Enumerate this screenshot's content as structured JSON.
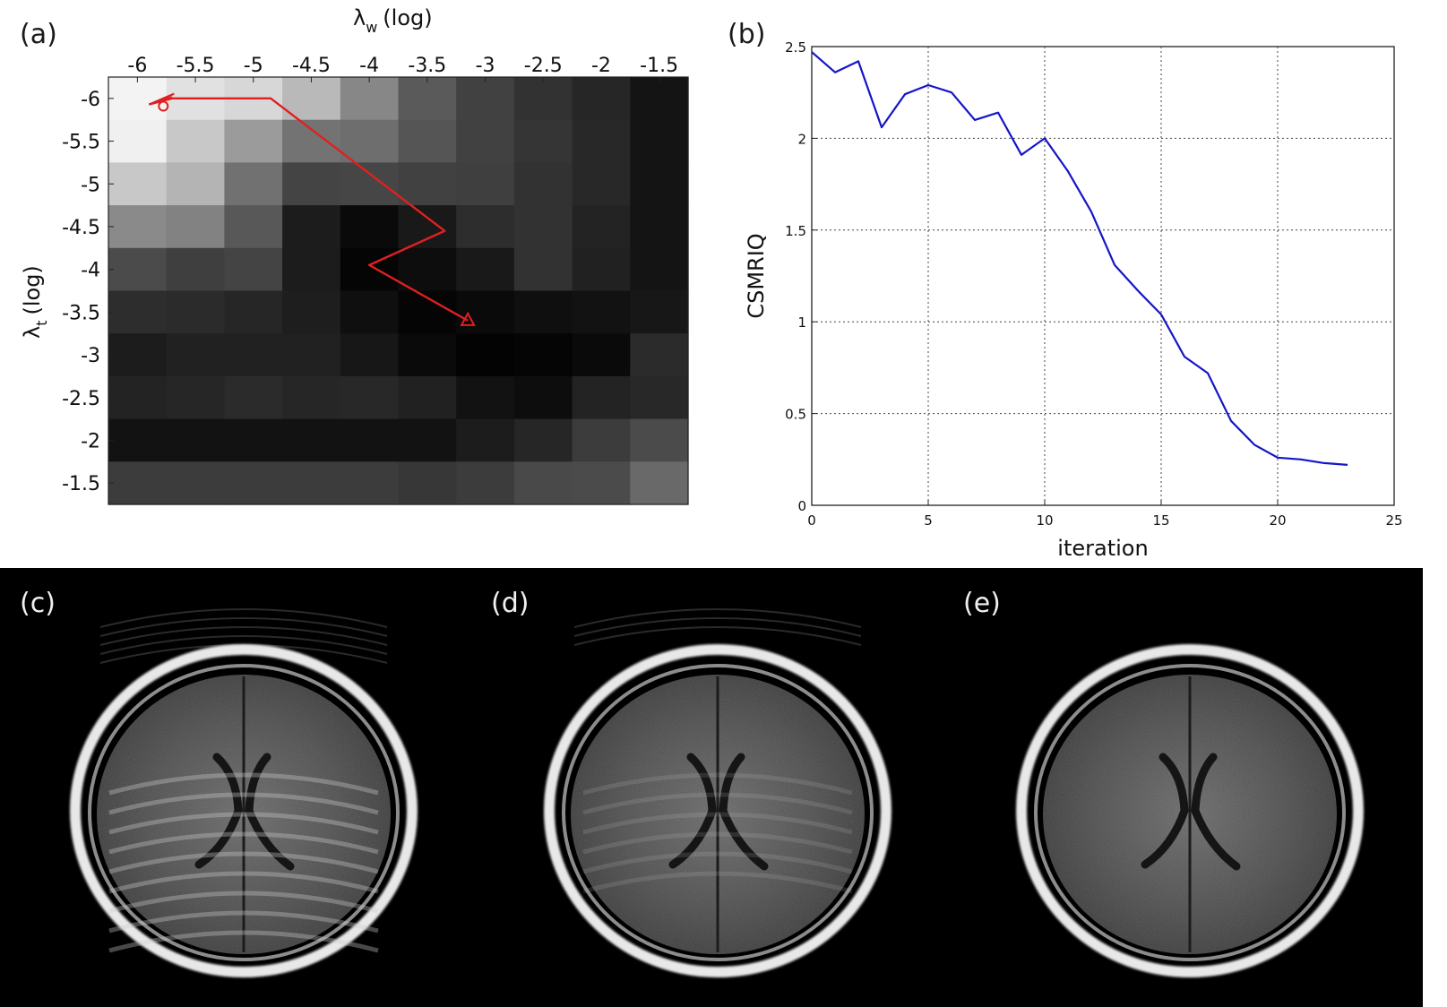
{
  "chart_data": [
    {
      "id": "a",
      "type": "heatmap",
      "panel_label": "(a)",
      "xlabel": {
        "symbol": "λ",
        "subscript": "w",
        "suffix": "(log)"
      },
      "ylabel": {
        "symbol": "λ",
        "subscript": "t",
        "suffix": "(log)"
      },
      "x_ticks": [
        "-6",
        "-5.5",
        "-5",
        "-4.5",
        "-4",
        "-3.5",
        "-3",
        "-2.5",
        "-2",
        "-1.5"
      ],
      "y_ticks": [
        "-6",
        "-5.5",
        "-5",
        "-4.5",
        "-4",
        "-3.5",
        "-3",
        "-2.5",
        "-2",
        "-1.5"
      ],
      "x_range": [
        -6.25,
        -1.25
      ],
      "y_range": [
        -6.25,
        -1.25
      ],
      "x_axis_position": "top",
      "y_direction": "down",
      "colormap": "gray",
      "z_relative": [
        [
          0.97,
          0.9,
          0.86,
          0.74,
          0.54,
          0.36,
          0.26,
          0.2,
          0.15,
          0.08
        ],
        [
          0.96,
          0.8,
          0.62,
          0.46,
          0.44,
          0.34,
          0.26,
          0.21,
          0.16,
          0.08
        ],
        [
          0.8,
          0.72,
          0.45,
          0.27,
          0.28,
          0.26,
          0.25,
          0.2,
          0.16,
          0.08
        ],
        [
          0.55,
          0.52,
          0.35,
          0.11,
          0.04,
          0.1,
          0.18,
          0.2,
          0.14,
          0.08
        ],
        [
          0.3,
          0.25,
          0.27,
          0.11,
          0.02,
          0.05,
          0.1,
          0.2,
          0.13,
          0.08
        ],
        [
          0.18,
          0.17,
          0.15,
          0.12,
          0.06,
          0.02,
          0.04,
          0.06,
          0.07,
          0.09
        ],
        [
          0.11,
          0.13,
          0.13,
          0.13,
          0.09,
          0.04,
          0.01,
          0.02,
          0.04,
          0.17
        ],
        [
          0.14,
          0.15,
          0.17,
          0.15,
          0.16,
          0.13,
          0.07,
          0.05,
          0.14,
          0.16
        ],
        [
          0.07,
          0.07,
          0.07,
          0.07,
          0.07,
          0.07,
          0.11,
          0.15,
          0.24,
          0.3
        ],
        [
          0.24,
          0.24,
          0.24,
          0.24,
          0.24,
          0.22,
          0.24,
          0.29,
          0.3,
          0.42
        ]
      ],
      "path": {
        "color": "#e02020",
        "points": [
          [
            -5.9,
            -5.93
          ],
          [
            -5.7,
            -6.0
          ],
          [
            -4.85,
            -6.0
          ],
          [
            -3.35,
            -4.45
          ],
          [
            -4.0,
            -4.05
          ],
          [
            -3.15,
            -3.4
          ]
        ],
        "start_marker": "circle",
        "end_marker": "triangle"
      }
    },
    {
      "id": "b",
      "type": "line",
      "panel_label": "(b)",
      "title": "",
      "xlabel": "iteration",
      "ylabel": "CSMRIQ",
      "xlim": [
        0,
        25
      ],
      "ylim": [
        0,
        2.5
      ],
      "x_ticks": [
        "0",
        "5",
        "10",
        "15",
        "20",
        "25"
      ],
      "y_ticks": [
        "0",
        "0.5",
        "1",
        "1.5",
        "2",
        "2.5"
      ],
      "grid": true,
      "grid_style": "dotted",
      "series": [
        {
          "color": "#1515c8",
          "x": [
            0,
            1,
            2,
            3,
            4,
            5,
            6,
            7,
            8,
            9,
            10,
            11,
            12,
            13,
            14,
            15,
            16,
            17,
            18,
            19,
            20,
            21,
            22,
            23
          ],
          "y": [
            2.47,
            2.36,
            2.42,
            2.06,
            2.24,
            2.29,
            2.25,
            2.1,
            2.14,
            1.91,
            2.0,
            1.82,
            1.6,
            1.31,
            1.17,
            1.04,
            0.81,
            0.72,
            0.46,
            0.33,
            0.26,
            0.25,
            0.23,
            0.22
          ]
        }
      ]
    }
  ],
  "images": [
    {
      "label": "(c)",
      "content": "brain-mri-slice",
      "artifact": "strong ring / stripe artifacts"
    },
    {
      "label": "(d)",
      "content": "brain-mri-slice",
      "artifact": "mild ring artifacts"
    },
    {
      "label": "(e)",
      "content": "brain-mri-slice",
      "artifact": "none"
    }
  ],
  "colors": {
    "path": "#e02020",
    "line": "#1515c8",
    "image_background": "#000000"
  }
}
